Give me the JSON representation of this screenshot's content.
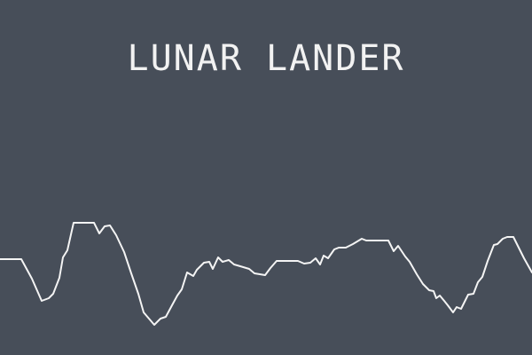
{
  "game": {
    "title": "LUNAR LANDER"
  },
  "colors": {
    "background": "#474e59",
    "terrain": "#f4f4f4",
    "text": "#f2f2f2"
  }
}
